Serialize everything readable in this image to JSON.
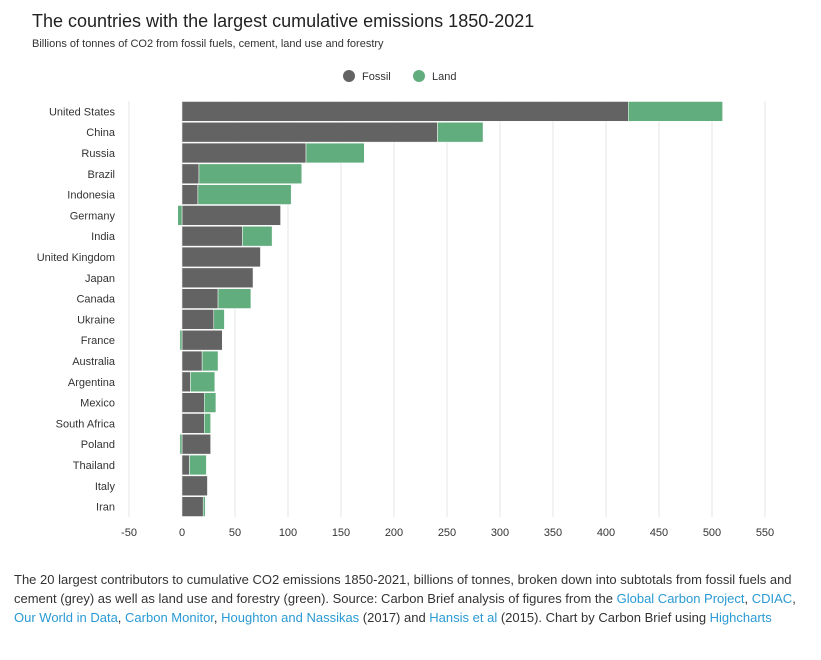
{
  "chart_data": {
    "type": "bar",
    "orientation": "horizontal",
    "stacked": true,
    "title": "The countries with the largest cumulative emissions 1850-2021",
    "subtitle": "Billions of tonnes of CO2 from fossil fuels, cement, land use and forestry",
    "categories": [
      "United States",
      "China",
      "Russia",
      "Brazil",
      "Indonesia",
      "Germany",
      "India",
      "United Kingdom",
      "Japan",
      "Canada",
      "Ukraine",
      "France",
      "Australia",
      "Argentina",
      "Mexico",
      "South Africa",
      "Poland",
      "Thailand",
      "Italy",
      "Iran"
    ],
    "series": [
      {
        "name": "Fossil",
        "color": "#636363",
        "values": [
          421,
          241,
          117,
          16,
          15,
          93,
          57,
          74,
          67,
          34,
          30,
          38,
          19,
          8,
          21,
          21,
          27,
          7,
          24,
          20
        ]
      },
      {
        "name": "Land",
        "color": "#62ad7d",
        "values": [
          89,
          43,
          55,
          97,
          88,
          -4,
          28,
          0,
          0,
          31,
          10,
          -2,
          15,
          23,
          11,
          6,
          -2,
          16,
          0,
          2
        ]
      }
    ],
    "xlim": [
      -50,
      550
    ],
    "xticks": [
      -50,
      0,
      50,
      100,
      150,
      200,
      250,
      300,
      350,
      400,
      450,
      500,
      550
    ],
    "grid": true,
    "legend_position": "top-center"
  },
  "caption": {
    "p1": "The 20 largest contributors to cumulative CO2 emissions 1850-2021, billions of tonnes, broken down into subtotals from fossil fuels and cement (grey) as well as land use and forestry (green). Source: Carbon Brief analysis of figures from the ",
    "link1": "Global Carbon Project",
    "s1": ", ",
    "link2": "CDIAC",
    "s2": ", ",
    "link3": "Our World in Data",
    "s3": ", ",
    "link4": "Carbon Monitor",
    "s4": ", ",
    "link5": "Houghton and Nassikas",
    "s5": " (2017) and ",
    "link6": "Hansis et al",
    "s6": " (2015). Chart by Carbon Brief using ",
    "link7": "Highcharts"
  }
}
